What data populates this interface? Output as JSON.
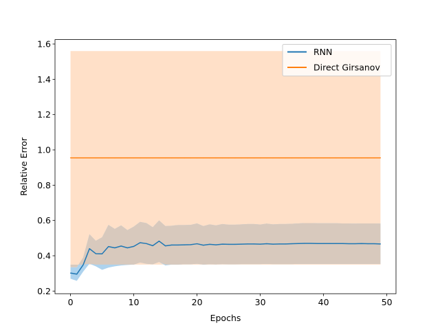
{
  "chart_data": {
    "type": "line",
    "title": "",
    "xlabel": "Epochs",
    "ylabel": "Relative Error",
    "xlim": [
      -2.45,
      51.45
    ],
    "ylim": [
      0.185,
      1.625
    ],
    "xticks": [
      0,
      10,
      20,
      30,
      40,
      50
    ],
    "yticks": [
      0.2,
      0.4,
      0.6,
      0.8,
      1.0,
      1.2,
      1.4,
      1.6
    ],
    "xtick_labels": [
      "0",
      "10",
      "20",
      "30",
      "40",
      "50"
    ],
    "ytick_labels": [
      "0.2",
      "0.4",
      "0.6",
      "0.8",
      "1.0",
      "1.2",
      "1.4",
      "1.6"
    ],
    "grid": false,
    "legend_position": "upper-right",
    "x": [
      0,
      1,
      2,
      3,
      4,
      5,
      6,
      7,
      8,
      9,
      10,
      11,
      12,
      13,
      14,
      15,
      16,
      17,
      18,
      19,
      20,
      21,
      22,
      23,
      24,
      25,
      26,
      27,
      28,
      29,
      30,
      31,
      32,
      33,
      34,
      35,
      36,
      37,
      38,
      39,
      40,
      41,
      42,
      43,
      44,
      45,
      46,
      47,
      48,
      49
    ],
    "series": [
      {
        "name": "RNN",
        "color": "#1f77b4",
        "values": [
          0.302,
          0.296,
          0.348,
          0.44,
          0.412,
          0.411,
          0.452,
          0.445,
          0.455,
          0.445,
          0.453,
          0.474,
          0.469,
          0.457,
          0.483,
          0.456,
          0.461,
          0.461,
          0.462,
          0.463,
          0.468,
          0.46,
          0.465,
          0.462,
          0.466,
          0.465,
          0.465,
          0.466,
          0.467,
          0.467,
          0.466,
          0.468,
          0.466,
          0.467,
          0.467,
          0.468,
          0.469,
          0.47,
          0.47,
          0.469,
          0.469,
          0.469,
          0.469,
          0.469,
          0.468,
          0.468,
          0.469,
          0.468,
          0.468,
          0.467
        ],
        "band_lower": [
          0.27,
          0.258,
          0.31,
          0.355,
          0.34,
          0.32,
          0.333,
          0.34,
          0.345,
          0.348,
          0.35,
          0.362,
          0.355,
          0.352,
          0.365,
          0.345,
          0.35,
          0.35,
          0.352,
          0.352,
          0.355,
          0.35,
          0.352,
          0.351,
          0.353,
          0.352,
          0.352,
          0.353,
          0.353,
          0.353,
          0.353,
          0.354,
          0.353,
          0.353,
          0.353,
          0.353,
          0.354,
          0.354,
          0.354,
          0.354,
          0.354,
          0.354,
          0.354,
          0.354,
          0.354,
          0.354,
          0.354,
          0.354,
          0.354,
          0.354
        ],
        "band_upper": [
          0.335,
          0.335,
          0.39,
          0.522,
          0.485,
          0.505,
          0.575,
          0.552,
          0.572,
          0.545,
          0.565,
          0.592,
          0.585,
          0.562,
          0.6,
          0.568,
          0.57,
          0.574,
          0.574,
          0.575,
          0.583,
          0.568,
          0.578,
          0.572,
          0.58,
          0.576,
          0.576,
          0.578,
          0.58,
          0.58,
          0.577,
          0.582,
          0.578,
          0.58,
          0.58,
          0.581,
          0.583,
          0.585,
          0.585,
          0.584,
          0.584,
          0.584,
          0.584,
          0.583,
          0.583,
          0.582,
          0.583,
          0.583,
          0.583,
          0.582
        ],
        "band_color": "#aed3ee"
      },
      {
        "name": "Direct Girsanov",
        "color": "#ff7f0e",
        "values": [
          0.955,
          0.955,
          0.955,
          0.955,
          0.955,
          0.955,
          0.955,
          0.955,
          0.955,
          0.955,
          0.955,
          0.955,
          0.955,
          0.955,
          0.955,
          0.955,
          0.955,
          0.955,
          0.955,
          0.955,
          0.955,
          0.955,
          0.955,
          0.955,
          0.955,
          0.955,
          0.955,
          0.955,
          0.955,
          0.955,
          0.955,
          0.955,
          0.955,
          0.955,
          0.955,
          0.955,
          0.955,
          0.955,
          0.955,
          0.955,
          0.955,
          0.955,
          0.955,
          0.955,
          0.955,
          0.955,
          0.955,
          0.955,
          0.955,
          0.955
        ],
        "band_lower": [
          0.35,
          0.35,
          0.35,
          0.35,
          0.35,
          0.35,
          0.35,
          0.35,
          0.35,
          0.35,
          0.35,
          0.35,
          0.35,
          0.35,
          0.35,
          0.35,
          0.35,
          0.35,
          0.35,
          0.35,
          0.35,
          0.35,
          0.35,
          0.35,
          0.35,
          0.35,
          0.35,
          0.35,
          0.35,
          0.35,
          0.35,
          0.35,
          0.35,
          0.35,
          0.35,
          0.35,
          0.35,
          0.35,
          0.35,
          0.35,
          0.35,
          0.35,
          0.35,
          0.35,
          0.35,
          0.35,
          0.35,
          0.35,
          0.35,
          0.35
        ],
        "band_upper": [
          1.56,
          1.56,
          1.56,
          1.56,
          1.56,
          1.56,
          1.56,
          1.56,
          1.56,
          1.56,
          1.56,
          1.56,
          1.56,
          1.56,
          1.56,
          1.56,
          1.56,
          1.56,
          1.56,
          1.56,
          1.56,
          1.56,
          1.56,
          1.56,
          1.56,
          1.56,
          1.56,
          1.56,
          1.56,
          1.56,
          1.56,
          1.56,
          1.56,
          1.56,
          1.56,
          1.56,
          1.56,
          1.56,
          1.56,
          1.56,
          1.56,
          1.56,
          1.56,
          1.56,
          1.56,
          1.56,
          1.56,
          1.56,
          1.56,
          1.56
        ],
        "band_color": "#ffe0c8"
      }
    ],
    "overlap_color": "#d8c9bd"
  }
}
